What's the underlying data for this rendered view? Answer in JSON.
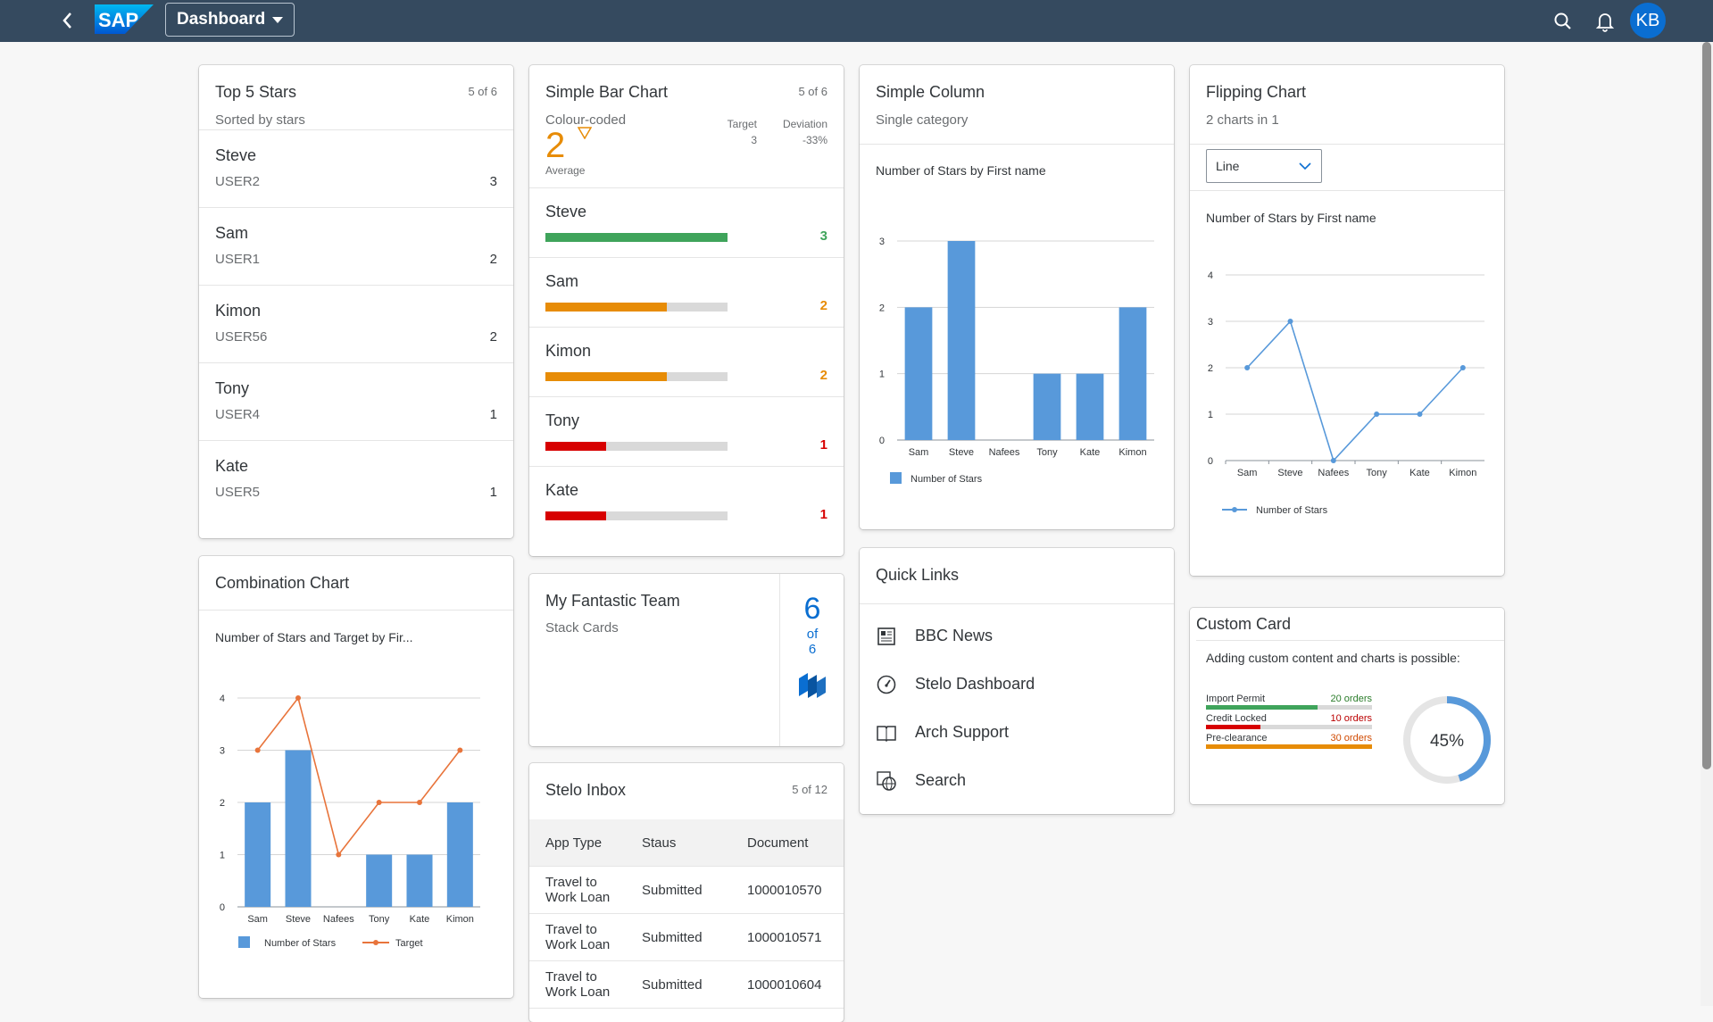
{
  "shell": {
    "app_title": "Dashboard",
    "avatar_initials": "KB",
    "logo_text": "SAP"
  },
  "cards": {
    "top5": {
      "title": "Top 5 Stars",
      "subtitle": "Sorted by stars",
      "count": "5 of 6",
      "items": [
        {
          "name": "Steve",
          "user": "USER2",
          "stars": "3"
        },
        {
          "name": "Sam",
          "user": "USER1",
          "stars": "2"
        },
        {
          "name": "Kimon",
          "user": "USER56",
          "stars": "2"
        },
        {
          "name": "Tony",
          "user": "USER4",
          "stars": "1"
        },
        {
          "name": "Kate",
          "user": "USER5",
          "stars": "1"
        }
      ]
    },
    "simple_bar": {
      "title": "Simple Bar Chart",
      "subtitle": "Colour-coded",
      "count": "5 of 6",
      "kpi_value": "2",
      "kpi_label": "Average",
      "target_label": "Target",
      "target_value": "3",
      "deviation_label": "Deviation",
      "deviation_value": "-33%",
      "max": 3,
      "rows": [
        {
          "name": "Steve",
          "value": 3,
          "label": "3",
          "color": "#3fa45b"
        },
        {
          "name": "Sam",
          "value": 2,
          "label": "2",
          "color": "#e78c07"
        },
        {
          "name": "Kimon",
          "value": 2,
          "label": "2",
          "color": "#e78c07"
        },
        {
          "name": "Tony",
          "value": 1,
          "label": "1",
          "color": "#d70000"
        },
        {
          "name": "Kate",
          "value": 1,
          "label": "1",
          "color": "#d70000"
        }
      ]
    },
    "simple_column": {
      "title": "Simple Column",
      "subtitle": "Single category",
      "chart_title": "Number of Stars by First name",
      "legend": "Number of Stars"
    },
    "flipping": {
      "title": "Flipping Chart",
      "subtitle": "2 charts in 1",
      "select_value": "Line",
      "chart_title": "Number of Stars by First name",
      "legend": "Number of Stars"
    },
    "combination": {
      "title": "Combination Chart",
      "chart_title": "Number of Stars and Target by Fir...",
      "legend_bar": "Number of Stars",
      "legend_line": "Target"
    },
    "team": {
      "title": "My Fantastic Team",
      "subtitle": "Stack Cards",
      "count_big": "6",
      "count_of": "of",
      "count_total": "6"
    },
    "quick_links": {
      "title": "Quick Links",
      "items": [
        {
          "label": "BBC News",
          "icon": "newspaper-icon"
        },
        {
          "label": "Stelo Dashboard",
          "icon": "gauge-icon"
        },
        {
          "label": "Arch Support",
          "icon": "book-icon"
        },
        {
          "label": "Search",
          "icon": "globe-search-icon"
        }
      ]
    },
    "inbox": {
      "title": "Stelo Inbox",
      "count": "5 of 12",
      "columns": [
        "App Type",
        "Staus",
        "Document"
      ],
      "rows": [
        {
          "app_type": "Travel to Work Loan",
          "status": "Submitted",
          "document": "1000010570"
        },
        {
          "app_type": "Travel to Work Loan",
          "status": "Submitted",
          "document": "1000010571"
        },
        {
          "app_type": "Travel to Work Loan",
          "status": "Submitted",
          "document": "1000010604"
        }
      ]
    },
    "custom": {
      "title": "Custom Card",
      "text": "Adding custom content and charts is possible:",
      "bars": [
        {
          "label": "Import Permit",
          "value_label": "20 orders",
          "fraction": 0.67,
          "color": "#3fa45b",
          "text_color": "#2b7d2b"
        },
        {
          "label": "Credit Locked",
          "value_label": "10 orders",
          "fraction": 0.33,
          "color": "#d70000",
          "text_color": "#bb0000"
        },
        {
          "label": "Pre-clearance",
          "value_label": "30 orders",
          "fraction": 1.0,
          "color": "#e78c07",
          "text_color": "#d04a02"
        }
      ],
      "donut_label": "45%",
      "donut_fraction": 0.45
    }
  },
  "chart_data": [
    {
      "type": "bar",
      "title": "Number of Stars by First name",
      "categories": [
        "Sam",
        "Steve",
        "Nafees",
        "Tony",
        "Kate",
        "Kimon"
      ],
      "series": [
        {
          "name": "Number of Stars",
          "values": [
            2,
            3,
            0,
            1,
            1,
            2
          ]
        }
      ],
      "ylim": [
        0,
        3
      ],
      "yticks": [
        "0",
        "1",
        "2",
        "3"
      ],
      "grid": true,
      "legend": "bottom-left"
    },
    {
      "type": "line",
      "title": "Number of Stars by First name",
      "categories": [
        "Sam",
        "Steve",
        "Nafees",
        "Tony",
        "Kate",
        "Kimon"
      ],
      "series": [
        {
          "name": "Number of Stars",
          "values": [
            2,
            3,
            0,
            1,
            1,
            2
          ]
        }
      ],
      "ylim": [
        0,
        4
      ],
      "yticks": [
        "0",
        "1",
        "2",
        "3",
        "4"
      ],
      "grid": true,
      "legend": "bottom-left"
    },
    {
      "type": "bar",
      "title": "Number of Stars and Target by Fir...",
      "categories": [
        "Sam",
        "Steve",
        "Nafees",
        "Tony",
        "Kate",
        "Kimon"
      ],
      "series": [
        {
          "name": "Number of Stars",
          "type": "bar",
          "values": [
            2,
            3,
            0,
            1,
            1,
            2
          ]
        },
        {
          "name": "Target",
          "type": "line",
          "values": [
            3,
            4,
            1,
            2,
            2,
            3
          ]
        }
      ],
      "ylim": [
        0,
        4
      ],
      "yticks": [
        "0",
        "1",
        "2",
        "3",
        "4"
      ],
      "grid": true,
      "legend": "bottom-left"
    }
  ],
  "colors": {
    "shell": "#354a5f",
    "accent": "#0a6ed1",
    "bar": "#5899da",
    "line": "#e8743b",
    "kpi": "#e78c07"
  }
}
